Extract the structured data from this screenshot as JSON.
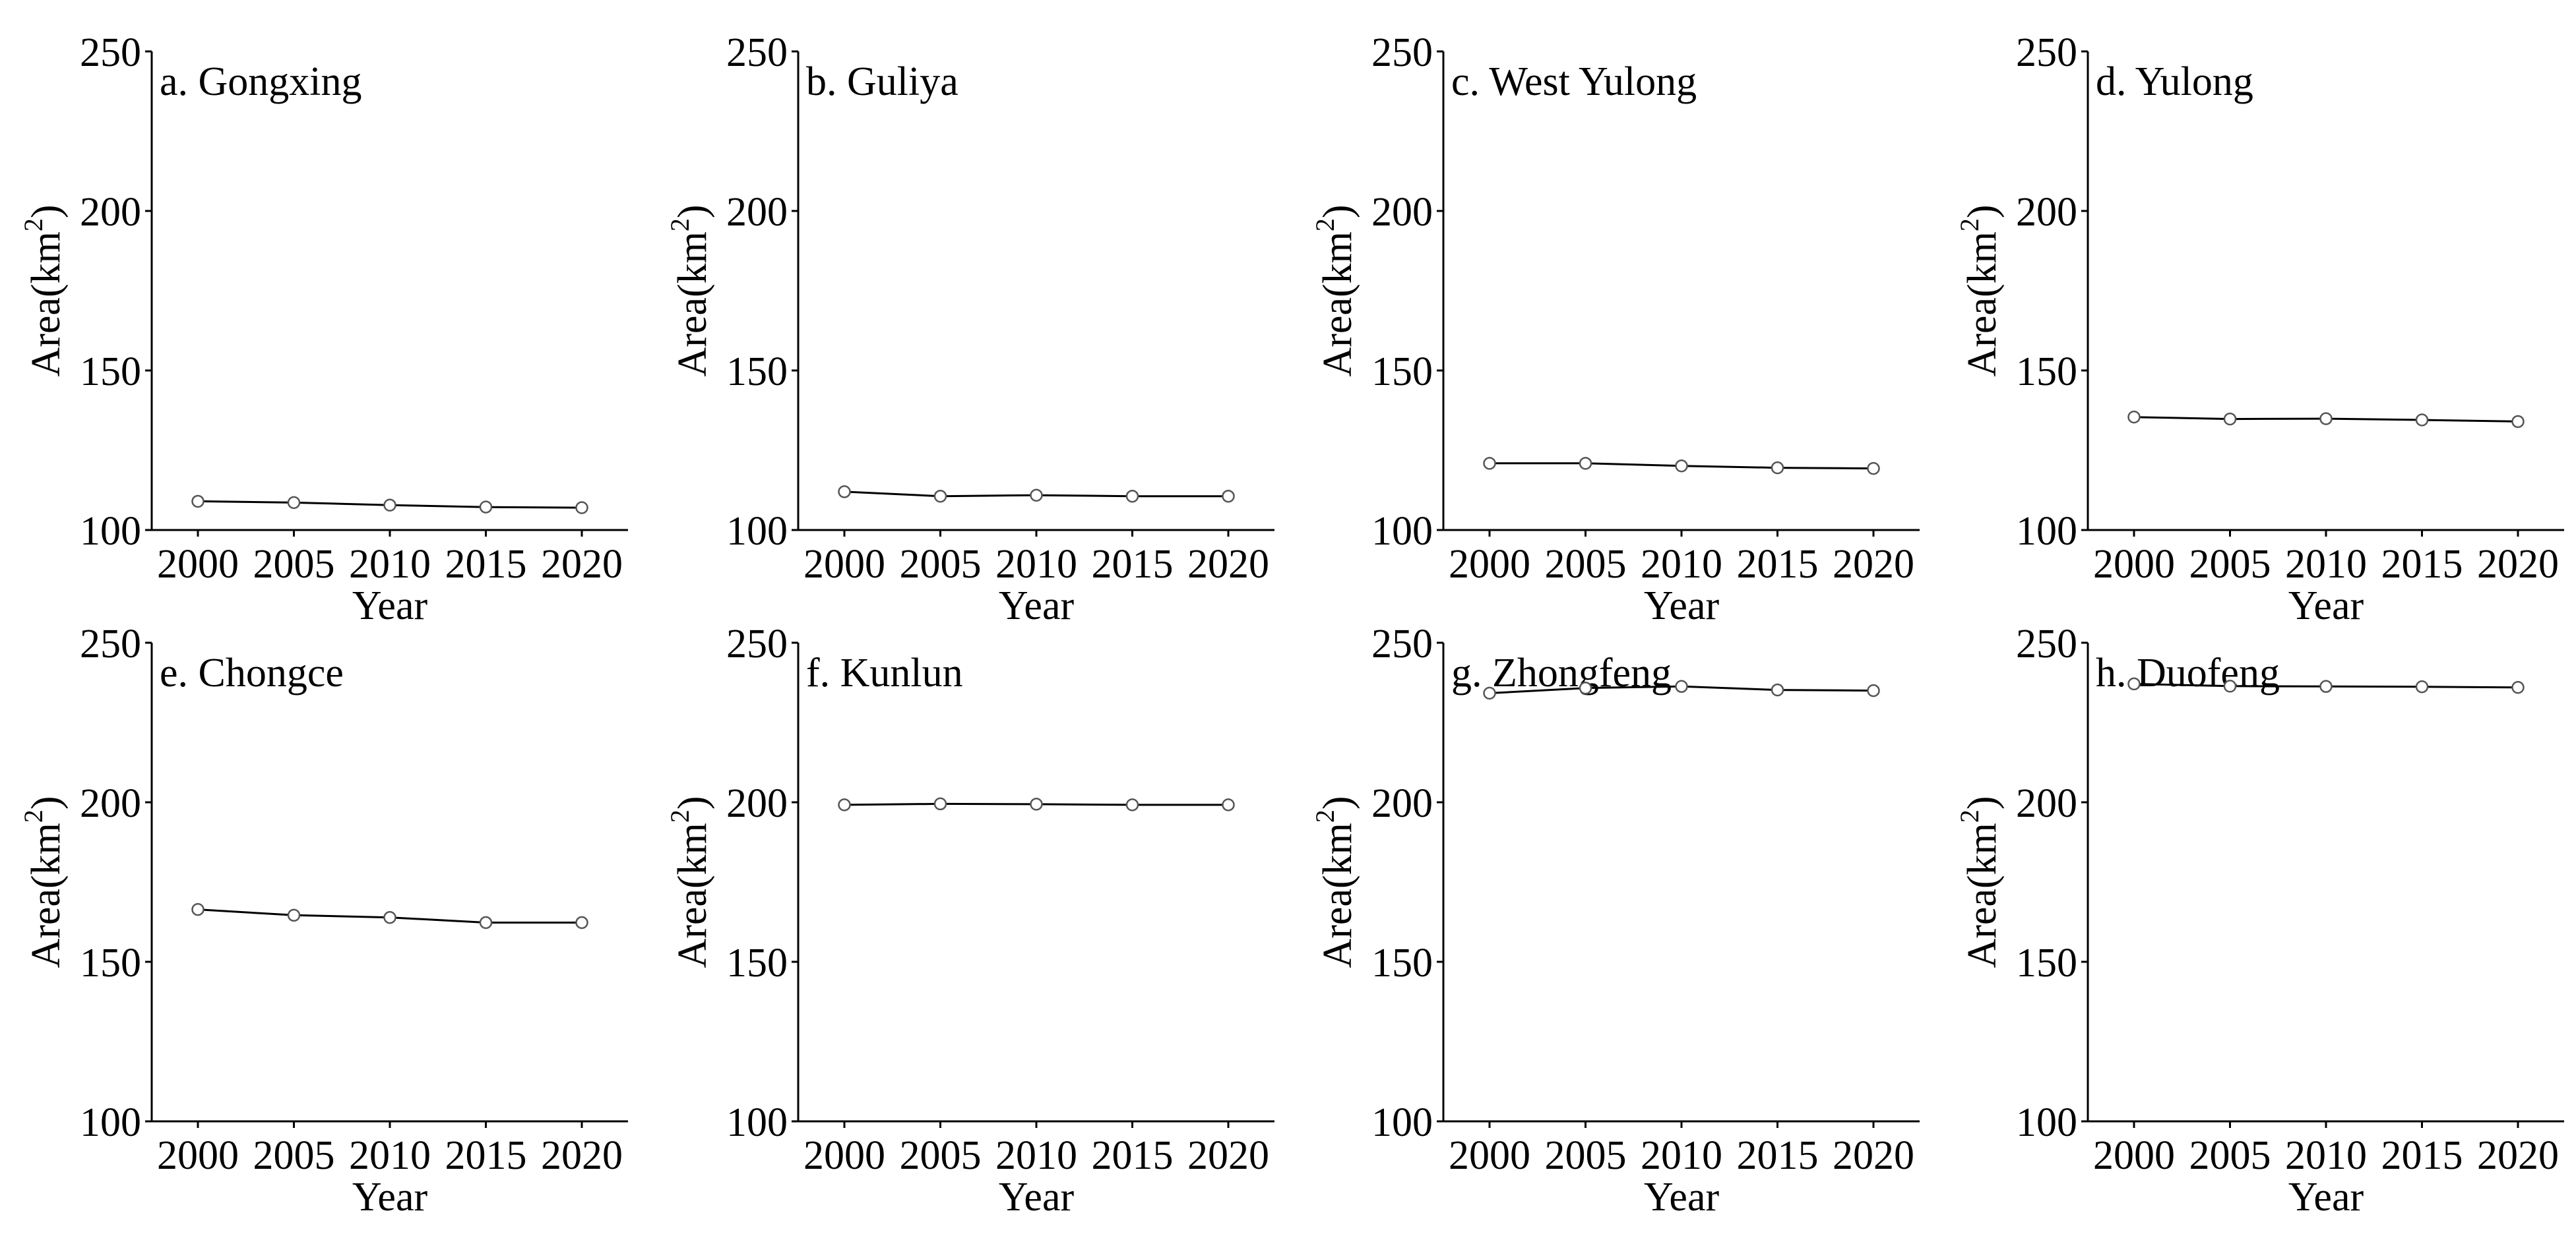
{
  "figure": {
    "panels_per_row": 4,
    "line_color": "#000000",
    "marker_fill": "#ffffff",
    "marker_stroke": "#555555",
    "background": "#ffffff"
  },
  "chart_data": [
    {
      "type": "line",
      "title": "a. Gongxing",
      "xlabel": "Year",
      "ylabel": "Area(km2)",
      "ylabel_main": "Area(km",
      "ylabel_sup": "2",
      "ylabel_close": ")",
      "x": [
        2000,
        2005,
        2010,
        2015,
        2020
      ],
      "y": [
        109.0,
        108.6,
        107.8,
        107.2,
        107.0
      ],
      "xticks": [
        "2000",
        "2005",
        "2010",
        "2015",
        "2020"
      ],
      "yticks": [
        "100",
        "150",
        "200",
        "250"
      ],
      "ylim": [
        100,
        250
      ],
      "grid": false
    },
    {
      "type": "line",
      "title": "b. Guliya",
      "xlabel": "Year",
      "ylabel": "Area(km2)",
      "ylabel_main": "Area(km",
      "ylabel_sup": "2",
      "ylabel_close": ")",
      "x": [
        2000,
        2005,
        2010,
        2015,
        2020
      ],
      "y": [
        112.0,
        110.6,
        110.9,
        110.6,
        110.6
      ],
      "xticks": [
        "2000",
        "2005",
        "2010",
        "2015",
        "2020"
      ],
      "yticks": [
        "100",
        "150",
        "200",
        "250"
      ],
      "ylim": [
        100,
        250
      ],
      "grid": false
    },
    {
      "type": "line",
      "title": "c. West Yulong",
      "xlabel": "Year",
      "ylabel": "Area(km2)",
      "ylabel_main": "Area(km",
      "ylabel_sup": "2",
      "ylabel_close": ")",
      "x": [
        2000,
        2005,
        2010,
        2015,
        2020
      ],
      "y": [
        120.9,
        120.9,
        120.1,
        119.5,
        119.3
      ],
      "xticks": [
        "2000",
        "2005",
        "2010",
        "2015",
        "2020"
      ],
      "yticks": [
        "100",
        "150",
        "200",
        "250"
      ],
      "ylim": [
        100,
        250
      ],
      "grid": false
    },
    {
      "type": "line",
      "title": "d. Yulong",
      "xlabel": "Year",
      "ylabel": "Area(km2)",
      "ylabel_main": "Area(km",
      "ylabel_sup": "2",
      "ylabel_close": ")",
      "x": [
        2000,
        2005,
        2010,
        2015,
        2020
      ],
      "y": [
        135.4,
        134.8,
        134.9,
        134.5,
        134.0
      ],
      "xticks": [
        "2000",
        "2005",
        "2010",
        "2015",
        "2020"
      ],
      "yticks": [
        "100",
        "150",
        "200",
        "250"
      ],
      "ylim": [
        100,
        250
      ],
      "grid": false
    },
    {
      "type": "line",
      "title": "e. Chongce",
      "xlabel": "Year",
      "ylabel": "Area(km2)",
      "ylabel_main": "Area(km",
      "ylabel_sup": "2",
      "ylabel_close": ")",
      "x": [
        2000,
        2005,
        2010,
        2015,
        2020
      ],
      "y": [
        166.4,
        164.6,
        163.9,
        162.3,
        162.3
      ],
      "xticks": [
        "2000",
        "2005",
        "2010",
        "2015",
        "2020"
      ],
      "yticks": [
        "100",
        "150",
        "200",
        "250"
      ],
      "ylim": [
        100,
        250
      ],
      "grid": false
    },
    {
      "type": "line",
      "title": "f. Kunlun",
      "xlabel": "Year",
      "ylabel": "Area(km2)",
      "ylabel_main": "Area(km",
      "ylabel_sup": "2",
      "ylabel_close": ")",
      "x": [
        2000,
        2005,
        2010,
        2015,
        2020
      ],
      "y": [
        199.2,
        199.5,
        199.4,
        199.2,
        199.2
      ],
      "xticks": [
        "2000",
        "2005",
        "2010",
        "2015",
        "2020"
      ],
      "yticks": [
        "100",
        "150",
        "200",
        "250"
      ],
      "ylim": [
        100,
        250
      ],
      "grid": false
    },
    {
      "type": "line",
      "title": "g. Zhongfeng",
      "xlabel": "Year",
      "ylabel": "Area(km2)",
      "ylabel_main": "Area(km",
      "ylabel_sup": "2",
      "ylabel_close": ")",
      "x": [
        2000,
        2005,
        2010,
        2015,
        2020
      ],
      "y": [
        234.2,
        235.8,
        236.3,
        235.2,
        235.0
      ],
      "xticks": [
        "2000",
        "2005",
        "2010",
        "2015",
        "2020"
      ],
      "yticks": [
        "100",
        "150",
        "200",
        "250"
      ],
      "ylim": [
        100,
        250
      ],
      "grid": false
    },
    {
      "type": "line",
      "title": "h. Duofeng",
      "xlabel": "Year",
      "ylabel": "Area(km2)",
      "ylabel_main": "Area(km",
      "ylabel_sup": "2",
      "ylabel_close": ")",
      "x": [
        2000,
        2005,
        2010,
        2015,
        2020
      ],
      "y": [
        237.1,
        236.4,
        236.3,
        236.2,
        236.0
      ],
      "xticks": [
        "2000",
        "2005",
        "2010",
        "2015",
        "2020"
      ],
      "yticks": [
        "100",
        "150",
        "200",
        "250"
      ],
      "ylim": [
        100,
        250
      ],
      "grid": false
    }
  ]
}
